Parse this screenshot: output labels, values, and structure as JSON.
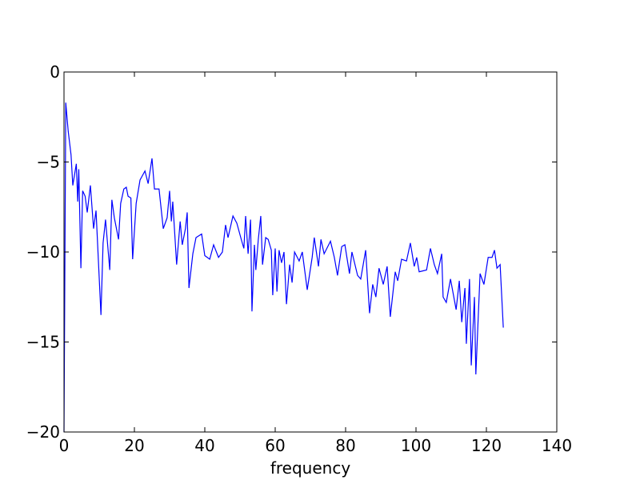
{
  "chart_data": {
    "type": "line",
    "xlabel": "frequency",
    "xlim": [
      0,
      140
    ],
    "xticks": [
      0,
      20,
      40,
      60,
      80,
      100,
      120,
      140
    ],
    "ylim": [
      -20,
      0
    ],
    "yticks": [
      {
        "value": -20,
        "label": "−20"
      },
      {
        "value": -15,
        "label": "−15"
      },
      {
        "value": -10,
        "label": "−10"
      },
      {
        "value": -5,
        "label": "−5"
      },
      0
    ],
    "series": [
      {
        "color": "#0000ff",
        "x": [
          0,
          0.5,
          1.2,
          2,
          2.5,
          3.5,
          3.9,
          4.2,
          4.8,
          5.3,
          6,
          6.6,
          7.5,
          8.4,
          9.1,
          10.5,
          11.1,
          11.8,
          13,
          13.6,
          14.3,
          15.5,
          16.1,
          17,
          17.7,
          18.2,
          19,
          19.5,
          20.5,
          21.6,
          23,
          23.9,
          25,
          25.7,
          27,
          28.2,
          29.3,
          30,
          30.5,
          30.9,
          32,
          33,
          33.6,
          34.5,
          35,
          35.5,
          36.6,
          37.5,
          39.1,
          40,
          41.4,
          42.5,
          43.9,
          45,
          45.9,
          46.6,
          48,
          49.1,
          50.5,
          51.1,
          51.6,
          52.3,
          53,
          53.4,
          54.1,
          54.5,
          55.2,
          55.9,
          56.4,
          57.3,
          58,
          58.9,
          59.3,
          60,
          60.5,
          61.1,
          61.8,
          62.5,
          63.2,
          64.1,
          64.8,
          65.5,
          66.8,
          67.7,
          69.1,
          70.5,
          71.1,
          72.3,
          73,
          73.9,
          75.7,
          76.8,
          77.7,
          78.9,
          79.8,
          81.1,
          81.8,
          83.4,
          84.3,
          85.7,
          86.8,
          87.7,
          88.6,
          89.5,
          90.7,
          91.8,
          92.7,
          94.1,
          94.8,
          95.9,
          97.3,
          98.4,
          99.5,
          100.2,
          100.9,
          103,
          104.1,
          105.2,
          106.1,
          107.3,
          107.7,
          108.6,
          109.8,
          111.4,
          112.3,
          113,
          113.9,
          114.3,
          115.2,
          115.7,
          116.6,
          117,
          118.2,
          119.3,
          120.5,
          121.6,
          122.3,
          123,
          123.9,
          124.8
        ],
        "values": [
          -20,
          -1.7,
          -3.3,
          -4.6,
          -6.3,
          -5.1,
          -7.2,
          -5.4,
          -10.9,
          -6.6,
          -6.9,
          -7.8,
          -6.3,
          -8.7,
          -7.7,
          -13.5,
          -9.5,
          -8.2,
          -11,
          -7.1,
          -8.1,
          -9.3,
          -7.3,
          -6.5,
          -6.4,
          -6.9,
          -7,
          -10.4,
          -7.3,
          -6,
          -5.5,
          -6.2,
          -4.8,
          -6.5,
          -6.5,
          -8.7,
          -8.1,
          -6.6,
          -8.3,
          -7.2,
          -10.7,
          -8.3,
          -9.6,
          -8.7,
          -7.8,
          -12,
          -10.1,
          -9.2,
          -9,
          -10.2,
          -10.4,
          -9.6,
          -10.3,
          -10,
          -8.5,
          -9.2,
          -8,
          -8.4,
          -9.4,
          -9.8,
          -8,
          -10.1,
          -8.2,
          -13.3,
          -9.6,
          -11,
          -9.3,
          -8,
          -10.7,
          -9.2,
          -9.3,
          -9.9,
          -12.4,
          -9.8,
          -12.2,
          -9.9,
          -10.6,
          -10,
          -12.9,
          -10.7,
          -11.7,
          -10,
          -10.5,
          -10,
          -12.1,
          -10.3,
          -9.2,
          -10.8,
          -9.3,
          -10.1,
          -9.4,
          -10.3,
          -11.3,
          -9.7,
          -9.6,
          -11.2,
          -10,
          -11.3,
          -11.5,
          -9.9,
          -13.4,
          -11.8,
          -12.5,
          -10.9,
          -11.8,
          -10.8,
          -13.6,
          -11.1,
          -11.6,
          -10.4,
          -10.5,
          -9.5,
          -10.8,
          -10.3,
          -11.1,
          -11,
          -9.8,
          -10.7,
          -11.2,
          -10.1,
          -12.5,
          -12.8,
          -11.5,
          -13.2,
          -11.6,
          -13.9,
          -12,
          -15.1,
          -11.5,
          -16.3,
          -12.5,
          -16.8,
          -11.2,
          -11.8,
          -10.3,
          -10.3,
          -9.9,
          -10.9,
          -10.7,
          -14.2
        ]
      }
    ]
  }
}
